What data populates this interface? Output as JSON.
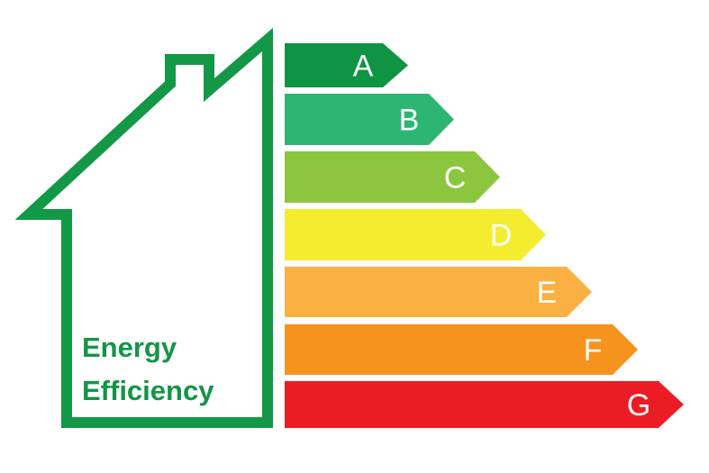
{
  "title": {
    "line1": "Energy",
    "line2": "Efficiency",
    "color": "#149447"
  },
  "house_outline_color": "#129846",
  "bands": [
    {
      "label": "A",
      "color": "#0f9444"
    },
    {
      "label": "B",
      "color": "#2db673"
    },
    {
      "label": "C",
      "color": "#8cc63f"
    },
    {
      "label": "D",
      "color": "#f4ec2f"
    },
    {
      "label": "E",
      "color": "#fbb042"
    },
    {
      "label": "F",
      "color": "#f6931f"
    },
    {
      "label": "G",
      "color": "#ec1c24"
    }
  ]
}
